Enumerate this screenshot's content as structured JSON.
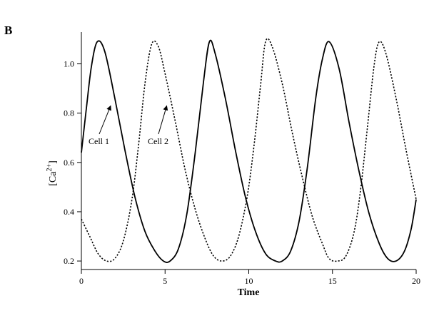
{
  "chart_data": {
    "type": "line",
    "panel_label": "B",
    "xlabel": "Time",
    "ylabel": "[Ca2+]",
    "ylabel_parts": {
      "base": "[Ca",
      "sup": "2+",
      "close": "]"
    },
    "xlim": [
      0,
      20
    ],
    "ylim": [
      0.18,
      1.1
    ],
    "xticks": [
      0,
      5,
      10,
      15,
      20
    ],
    "xtick_labels": [
      "0",
      "5",
      "10",
      "15",
      "20"
    ],
    "yticks": [
      0.2,
      0.4,
      0.6,
      0.8,
      1.0
    ],
    "ytick_labels": [
      "0.2",
      "0.4",
      "0.6",
      "0.8",
      "1.0"
    ],
    "grid": false,
    "series": [
      {
        "name": "Cell 1",
        "style": "solid",
        "x": [
          0.0,
          0.3,
          0.6,
          0.95,
          1.4,
          2.0,
          2.6,
          3.2,
          3.8,
          4.4,
          4.9,
          5.3,
          5.8,
          6.3,
          6.8,
          7.3,
          7.65,
          8.0,
          8.6,
          9.2,
          9.8,
          10.4,
          11.0,
          11.6,
          12.0,
          12.5,
          13.0,
          13.5,
          14.0,
          14.4,
          14.8,
          15.4,
          16.0,
          16.6,
          17.2,
          17.8,
          18.3,
          18.8,
          19.3,
          19.7,
          20.0
        ],
        "y": [
          0.64,
          0.82,
          0.99,
          1.09,
          1.05,
          0.86,
          0.65,
          0.46,
          0.32,
          0.24,
          0.2,
          0.2,
          0.25,
          0.39,
          0.64,
          0.93,
          1.09,
          1.04,
          0.86,
          0.65,
          0.46,
          0.32,
          0.23,
          0.2,
          0.2,
          0.24,
          0.36,
          0.58,
          0.86,
          1.02,
          1.09,
          0.98,
          0.76,
          0.56,
          0.39,
          0.27,
          0.21,
          0.2,
          0.24,
          0.33,
          0.45
        ]
      },
      {
        "name": "Cell 2",
        "style": "dotted",
        "x": [
          0.0,
          0.5,
          1.0,
          1.5,
          2.0,
          2.5,
          3.0,
          3.4,
          3.8,
          4.2,
          4.6,
          5.0,
          5.6,
          6.2,
          6.8,
          7.4,
          7.9,
          8.4,
          8.9,
          9.4,
          9.9,
          10.3,
          10.7,
          11.0,
          11.4,
          12.0,
          12.6,
          13.2,
          13.8,
          14.4,
          14.8,
          15.3,
          15.8,
          16.3,
          16.7,
          17.1,
          17.5,
          17.8,
          18.2,
          18.8,
          19.4,
          20.0
        ],
        "y": [
          0.37,
          0.3,
          0.23,
          0.2,
          0.21,
          0.28,
          0.44,
          0.66,
          0.92,
          1.08,
          1.07,
          0.96,
          0.77,
          0.57,
          0.41,
          0.29,
          0.22,
          0.2,
          0.22,
          0.3,
          0.46,
          0.66,
          0.91,
          1.09,
          1.07,
          0.92,
          0.72,
          0.54,
          0.38,
          0.27,
          0.21,
          0.2,
          0.22,
          0.32,
          0.5,
          0.75,
          1.0,
          1.09,
          1.04,
          0.86,
          0.65,
          0.45
        ]
      }
    ],
    "annotations": [
      {
        "text": "Cell 1",
        "points_to_series": "Cell 1",
        "arrow_target": [
          1.75,
          0.83
        ]
      },
      {
        "text": "Cell 2",
        "points_to_series": "Cell 2",
        "arrow_target": [
          5.1,
          0.83
        ]
      }
    ]
  }
}
